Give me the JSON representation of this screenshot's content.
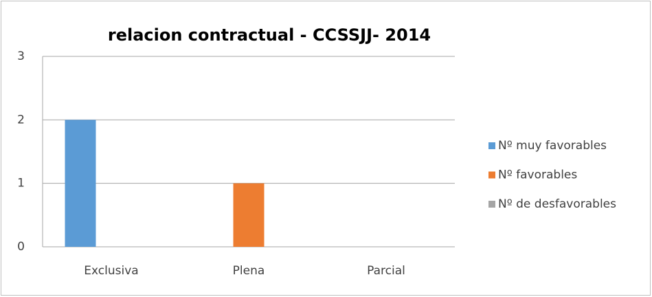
{
  "chart_data": {
    "type": "bar",
    "title": "relacion contractual - CCSSJJ- 2014",
    "categories": [
      "Exclusiva",
      "Plena",
      "Parcial"
    ],
    "series": [
      {
        "name": "Nº muy favorables",
        "color": "#5b9bd5",
        "values": [
          2,
          0,
          0
        ]
      },
      {
        "name": "Nº favorables",
        "color": "#ed7d31",
        "values": [
          0,
          1,
          0
        ]
      },
      {
        "name": "Nº de desfavorables",
        "color": "#a5a5a5",
        "values": [
          0,
          0,
          0
        ]
      }
    ],
    "ylim": [
      0,
      3
    ],
    "yticks": [
      0,
      1,
      2,
      3
    ],
    "grid": true,
    "legend": "right"
  }
}
